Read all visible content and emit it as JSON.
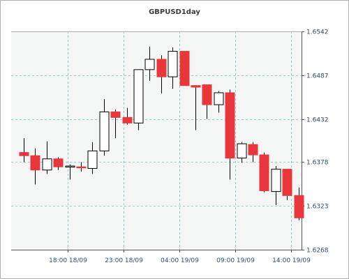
{
  "chart_data": {
    "type": "candlestick",
    "title": "GBPUSD1day",
    "xlabel": "",
    "ylabel": "",
    "ylim": [
      1.6268,
      1.6542
    ],
    "y_ticks": [
      "1.6542",
      "1.6487",
      "1.6432",
      "1.6378",
      "1.6323",
      "1.6268"
    ],
    "x_ticks": [
      "18:00 18/09",
      "23:00 18/09",
      "04:00 19/09",
      "09:00 19/09",
      "14:00 19/09"
    ],
    "grid": true,
    "colors": {
      "up": "#ffffff",
      "down": "#e8363a",
      "outline": "#000000",
      "grid": "#8fd0d8",
      "plot_bg": "#f4f6f6",
      "axis_text": "#2d4a6e"
    },
    "candles": [
      {
        "open": 1.639,
        "high": 1.6408,
        "low": 1.6378,
        "close": 1.6386
      },
      {
        "open": 1.6386,
        "high": 1.6395,
        "low": 1.635,
        "close": 1.6368
      },
      {
        "open": 1.6368,
        "high": 1.6404,
        "low": 1.6363,
        "close": 1.6382
      },
      {
        "open": 1.6382,
        "high": 1.6384,
        "low": 1.6368,
        "close": 1.6372
      },
      {
        "open": 1.6372,
        "high": 1.6375,
        "low": 1.6356,
        "close": 1.6373
      },
      {
        "open": 1.6372,
        "high": 1.6378,
        "low": 1.6366,
        "close": 1.6371
      },
      {
        "open": 1.637,
        "high": 1.6403,
        "low": 1.6363,
        "close": 1.6392
      },
      {
        "open": 1.6392,
        "high": 1.6457,
        "low": 1.6386,
        "close": 1.6441
      },
      {
        "open": 1.6441,
        "high": 1.6444,
        "low": 1.6408,
        "close": 1.6434
      },
      {
        "open": 1.6434,
        "high": 1.6446,
        "low": 1.6425,
        "close": 1.6427
      },
      {
        "open": 1.6427,
        "high": 1.6494,
        "low": 1.6418,
        "close": 1.6494
      },
      {
        "open": 1.6494,
        "high": 1.6523,
        "low": 1.648,
        "close": 1.6507
      },
      {
        "open": 1.6507,
        "high": 1.6512,
        "low": 1.6464,
        "close": 1.6485
      },
      {
        "open": 1.6485,
        "high": 1.6522,
        "low": 1.647,
        "close": 1.6517
      },
      {
        "open": 1.6517,
        "high": 1.6517,
        "low": 1.6475,
        "close": 1.6474
      },
      {
        "open": 1.6474,
        "high": 1.6474,
        "low": 1.6418,
        "close": 1.6472
      },
      {
        "open": 1.6475,
        "high": 1.6475,
        "low": 1.6432,
        "close": 1.645
      },
      {
        "open": 1.645,
        "high": 1.6467,
        "low": 1.644,
        "close": 1.6465
      },
      {
        "open": 1.6465,
        "high": 1.6469,
        "low": 1.6356,
        "close": 1.6383
      },
      {
        "open": 1.6383,
        "high": 1.6403,
        "low": 1.6377,
        "close": 1.6401
      },
      {
        "open": 1.64,
        "high": 1.6403,
        "low": 1.6378,
        "close": 1.6387
      },
      {
        "open": 1.6387,
        "high": 1.639,
        "low": 1.634,
        "close": 1.6342
      },
      {
        "open": 1.6341,
        "high": 1.6373,
        "low": 1.6324,
        "close": 1.6369
      },
      {
        "open": 1.6369,
        "high": 1.6369,
        "low": 1.633,
        "close": 1.6336
      },
      {
        "open": 1.6336,
        "high": 1.6346,
        "low": 1.6305,
        "close": 1.6308
      }
    ]
  }
}
